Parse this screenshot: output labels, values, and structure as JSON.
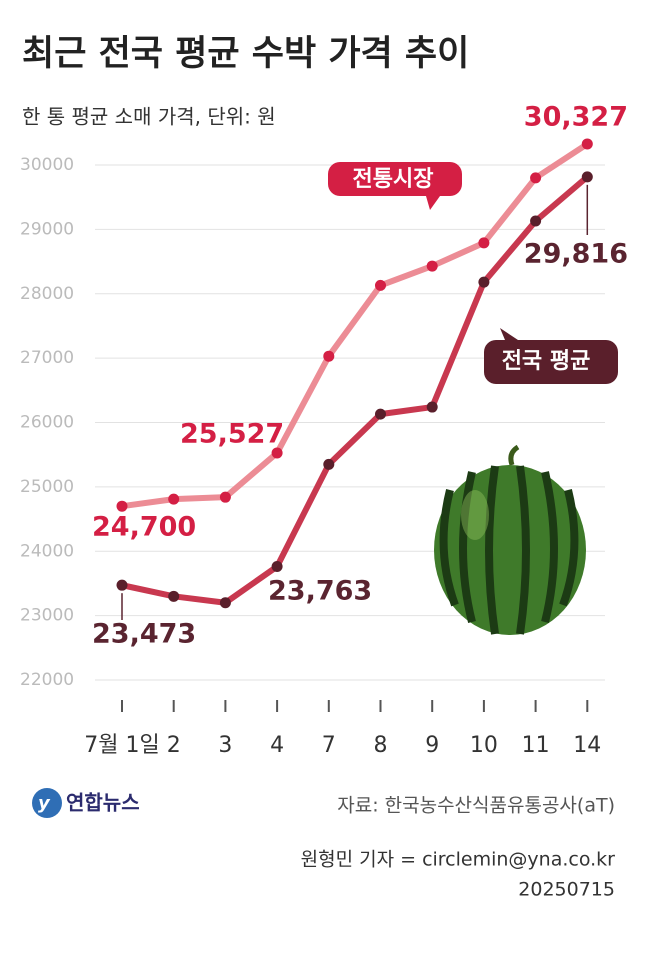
{
  "chart_data": {
    "type": "line",
    "title": "최근 전국 평균 수박 가격 추이",
    "subtitle": "한 통 평균 소매 가격, 단위: 원",
    "categories": [
      "7월 1일",
      "2",
      "3",
      "4",
      "7",
      "8",
      "9",
      "10",
      "11",
      "14"
    ],
    "series": [
      {
        "name": "전통시장",
        "color": "#ec8c95",
        "marker_color": "#d41f44",
        "label_color": "#d41f44",
        "values": [
          24700,
          24810,
          24840,
          25527,
          27030,
          28130,
          28430,
          28790,
          29800,
          30327
        ],
        "value_labels": [
          "24,700",
          null,
          null,
          "25,527",
          null,
          null,
          null,
          null,
          null,
          "30,327"
        ]
      },
      {
        "name": "전국 평균",
        "color": "#c8384f",
        "marker_color": "#5a1f2b",
        "label_color": "#5a2430",
        "values": [
          23473,
          23300,
          23200,
          23763,
          25350,
          26130,
          26240,
          28180,
          29130,
          29816
        ],
        "value_labels": [
          "23,473",
          null,
          null,
          "23,763",
          null,
          null,
          null,
          null,
          null,
          "29,816"
        ]
      }
    ],
    "ylim": [
      22000,
      30000
    ],
    "yticks": [
      22000,
      23000,
      24000,
      25000,
      26000,
      27000,
      28000,
      29000,
      30000
    ],
    "grid": true
  },
  "footer": {
    "logo": "연합뉴스",
    "source": "자료: 한국농수산식품유통공사(aT)",
    "credit": "원형민 기자 = circlemin@yna.co.kr",
    "date": "20250715"
  }
}
